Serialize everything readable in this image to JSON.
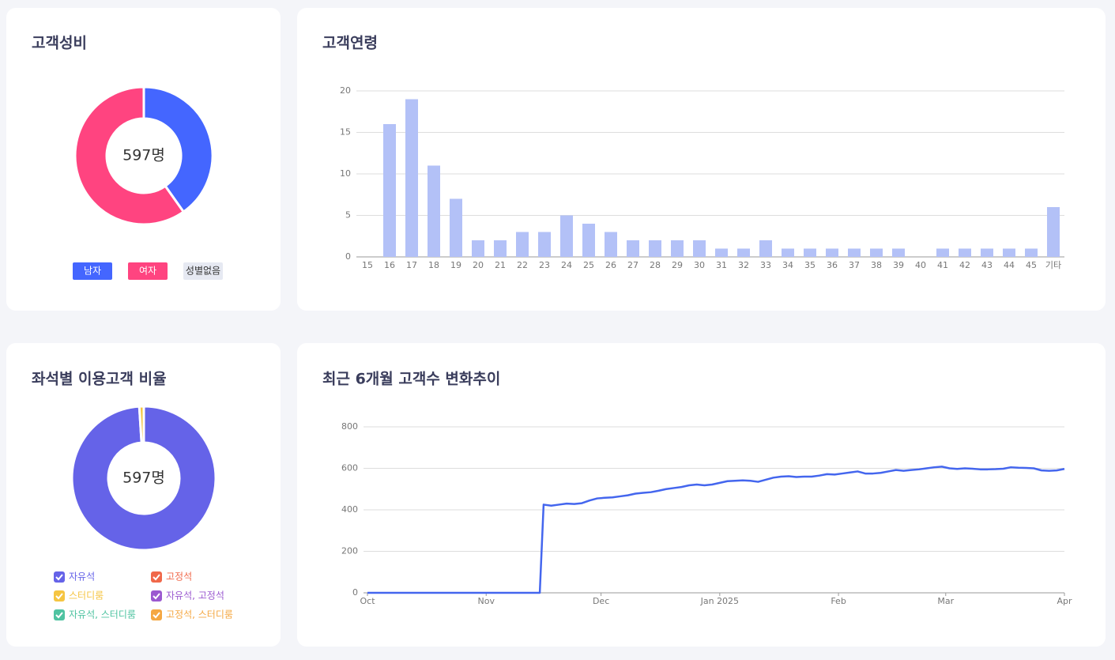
{
  "chart_data": [
    {
      "type": "pie",
      "title": "고객성비",
      "center_label": "597명",
      "legend_style": "box",
      "labels": [
        "남자",
        "여자",
        "성별없음"
      ],
      "values": [
        240,
        357,
        0
      ],
      "colors": [
        "#4466ff",
        "#ff4480",
        "#e6e9f2"
      ]
    },
    {
      "type": "bar",
      "title": "고객연령",
      "color": "#b3c1f7",
      "grid": true,
      "categories": [
        "15",
        "16",
        "17",
        "18",
        "19",
        "20",
        "21",
        "22",
        "23",
        "24",
        "25",
        "26",
        "27",
        "28",
        "29",
        "30",
        "31",
        "32",
        "33",
        "34",
        "35",
        "36",
        "37",
        "38",
        "39",
        "40",
        "41",
        "42",
        "43",
        "44",
        "45",
        "기타"
      ],
      "values": [
        0,
        16,
        19,
        11,
        7,
        2,
        2,
        3,
        3,
        5,
        4,
        3,
        2,
        2,
        2,
        2,
        1,
        1,
        2,
        1,
        1,
        1,
        1,
        1,
        1,
        0,
        1,
        1,
        1,
        1,
        1,
        6
      ],
      "ylim": [
        0,
        20
      ],
      "yticks": [
        0,
        5,
        10,
        15,
        20
      ]
    },
    {
      "type": "pie",
      "title": "좌석별 이용고객 비율",
      "center_label": "597명",
      "legend_style": "checkbox",
      "labels": [
        "자유석",
        "고정석",
        "스터디룸",
        "자유석, 고정석",
        "자유석, 스터디룸",
        "고정석, 스터디룸"
      ],
      "values": [
        591,
        0,
        6,
        0,
        0,
        0
      ],
      "colors": [
        "#6563e8",
        "#f0684a",
        "#f5c542",
        "#9b59d0",
        "#4fc3a1",
        "#f5a742"
      ]
    },
    {
      "type": "line",
      "title": "최근 6개월 고객수 변화추이",
      "color": "#4466ee",
      "grid": true,
      "x": [
        0,
        45,
        46,
        48,
        50,
        52,
        54,
        56,
        58,
        60,
        62,
        64,
        66,
        68,
        70,
        72,
        74,
        76,
        78,
        80,
        82,
        84,
        86,
        88,
        90,
        92,
        94,
        96,
        98,
        100,
        102,
        104,
        106,
        108,
        110,
        112,
        114,
        116,
        118,
        120,
        122,
        124,
        126,
        128,
        130,
        132,
        134,
        136,
        138,
        140,
        142,
        144,
        146,
        148,
        150,
        152,
        154,
        156,
        158,
        160,
        162,
        164,
        166,
        168,
        170,
        172,
        174,
        176,
        178,
        180,
        182
      ],
      "values": [
        0,
        0,
        425,
        420,
        425,
        430,
        428,
        432,
        445,
        455,
        458,
        460,
        465,
        470,
        478,
        482,
        485,
        492,
        500,
        505,
        510,
        518,
        522,
        518,
        522,
        530,
        538,
        540,
        542,
        540,
        535,
        545,
        555,
        560,
        562,
        558,
        560,
        560,
        565,
        572,
        570,
        575,
        580,
        585,
        575,
        575,
        578,
        585,
        592,
        588,
        592,
        595,
        600,
        605,
        608,
        600,
        597,
        600,
        598,
        595,
        595,
        596,
        598,
        605,
        603,
        602,
        600,
        590,
        588,
        590,
        597
      ],
      "xlim": [
        0,
        182
      ],
      "xticks": [
        {
          "value": 0,
          "label": "Oct"
        },
        {
          "value": 31,
          "label": "Nov"
        },
        {
          "value": 61,
          "label": "Dec"
        },
        {
          "value": 92,
          "label": "Jan 2025"
        },
        {
          "value": 123,
          "label": "Feb"
        },
        {
          "value": 151,
          "label": "Mar"
        },
        {
          "value": 182,
          "label": "Apr"
        }
      ],
      "ylim": [
        0,
        800
      ],
      "yticks": [
        0,
        200,
        400,
        600,
        800
      ]
    }
  ]
}
